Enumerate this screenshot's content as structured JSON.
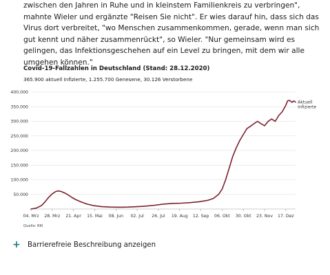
{
  "article": {
    "text": "zwischen den Jahren in Ruhe und in kleinstem Familienkreis zu verbringen\", mahnte Wieler und ergänzte \"Reisen Sie nicht\". Er wies darauf hin, dass sich das Virus dort verbreitet, \"wo Menschen zusammenkommen, gerade, wenn man sich gut kennt und näher zusammenrückt\", so Wieler. \"Nur gemeinsam wird es gelingen, das Infektionsgeschehen auf ein Level zu bringen, mit dem wir alle umgehen können.\""
  },
  "source": "Quelle: RKI",
  "accessibility": {
    "icon": "plus-icon",
    "label": "Barrierefreie Beschreibung anzeigen"
  },
  "colors": {
    "line": "#7a1f2c",
    "grid": "#d9d9d9",
    "accent": "#1b7a89"
  },
  "chart_data": {
    "type": "line",
    "title": "Covid-19-Fallzahlen in Deutschland (Stand: 28.12.2020)",
    "subtitle": "365.900 aktuell Infizierte, 1.255.700 Genesene, 30.126 Verstorbene",
    "annotation": "Aktuell Infizierte",
    "ylim": [
      0,
      400000
    ],
    "yticks": [
      0,
      50000,
      100000,
      150000,
      200000,
      250000,
      300000,
      350000,
      400000
    ],
    "ytick_labels": [
      "",
      "50.000",
      "100.000",
      "150.000",
      "200.000",
      "250.000",
      "300.000",
      "350.000",
      "400.000"
    ],
    "xlim": [
      0,
      299
    ],
    "xticks": [
      0,
      24,
      48,
      72,
      96,
      120,
      144,
      168,
      192,
      216,
      240,
      264,
      288
    ],
    "xtick_labels": [
      "04. Mrz",
      "28. Mrz",
      "21. Apr",
      "15. Mai",
      "08. Jun",
      "02. Jul",
      "26. Jul",
      "19. Aug",
      "12. Sep",
      "06. Okt",
      "30. Okt",
      "23. Nov",
      "17. Dez"
    ],
    "grid": true,
    "series": [
      {
        "x": [
          0,
          6,
          12,
          16,
          20,
          24,
          28,
          31,
          34,
          38,
          42,
          46,
          50,
          56,
          62,
          70,
          80,
          90,
          100,
          110,
          120,
          130,
          140,
          150,
          160,
          170,
          180,
          190,
          200,
          206,
          212,
          216,
          220,
          224,
          228,
          232,
          236,
          240,
          244,
          248,
          252,
          256,
          260,
          264,
          268,
          272,
          276,
          280,
          284,
          288,
          290,
          292,
          295,
          297,
          299
        ],
        "y": [
          0,
          3000,
          12000,
          25000,
          40000,
          52000,
          60000,
          62000,
          60000,
          55000,
          48000,
          40000,
          33000,
          25000,
          18000,
          12000,
          8000,
          6500,
          6000,
          6500,
          8000,
          10000,
          13000,
          17000,
          19000,
          20000,
          22000,
          25000,
          30000,
          36000,
          50000,
          68000,
          100000,
          140000,
          180000,
          210000,
          235000,
          255000,
          275000,
          283000,
          292000,
          300000,
          292000,
          285000,
          300000,
          308000,
          300000,
          320000,
          333000,
          355000,
          370000,
          372000,
          365000,
          370000,
          365900
        ]
      }
    ]
  }
}
